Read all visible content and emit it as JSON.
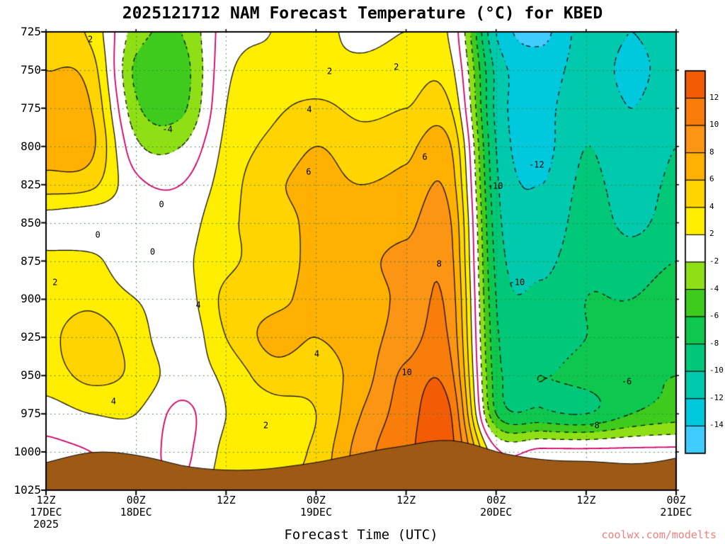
{
  "title": "2025121712 NAM Forecast Temperature (°C) for KBED",
  "xlabel": "Forecast Time (UTC)",
  "watermark": "coolwx.com/modelts",
  "axes": {
    "y_tick_labels": [
      "725",
      "750",
      "775",
      "800",
      "825",
      "850",
      "875",
      "900",
      "925",
      "950",
      "975",
      "1000",
      "1025"
    ],
    "x_tick_labels": [
      "12Z",
      "00Z",
      "12Z",
      "00Z",
      "12Z",
      "00Z",
      "12Z",
      "00Z"
    ],
    "date_labels": [
      {
        "text": "17DEC",
        "hour": 0,
        "row": 1
      },
      {
        "text": "2025",
        "hour": 0,
        "row": 2
      },
      {
        "text": "18DEC",
        "hour": 12,
        "row": 1
      },
      {
        "text": "19DEC",
        "hour": 36,
        "row": 1
      },
      {
        "text": "20DEC",
        "hour": 60,
        "row": 1
      },
      {
        "text": "21DEC",
        "hour": 84,
        "row": 1
      }
    ]
  },
  "colorbar": {
    "tick_labels": [
      "12",
      "10",
      "8",
      "6",
      "4",
      "2",
      "-2",
      "-4",
      "-6",
      "-8",
      "-10",
      "-12",
      "-14"
    ]
  },
  "colors": {
    "band_colors_cold_to_warm": [
      "#41ccff",
      "#00c9de",
      "#00c9ad",
      "#00c878",
      "#0ec74e",
      "#3ecb1e",
      "#8fdf16",
      "#ffffff",
      "#ffee00",
      "#ffd400",
      "#ffb000",
      "#fc9414",
      "#f87d0a",
      "#f25c05"
    ],
    "contour_positive": "#000000",
    "contour_negative": "#000000",
    "contour_zero": "#cc0066",
    "grid_dots": "#2e7d32",
    "terrain": "#9e5a15",
    "frame": "#000000",
    "watermark": "#f08080"
  },
  "contour_labels": [
    {
      "text": "2",
      "t": 5.9,
      "p": 730
    },
    {
      "text": "-4",
      "t": 16.2,
      "p": 789
    },
    {
      "text": "0",
      "t": 15.4,
      "p": 838
    },
    {
      "text": "0",
      "t": 6.9,
      "p": 858
    },
    {
      "text": "0",
      "t": 14.2,
      "p": 869
    },
    {
      "text": "2",
      "t": 1.2,
      "p": 889
    },
    {
      "text": "4",
      "t": 9.0,
      "p": 967
    },
    {
      "text": "4",
      "t": 20.3,
      "p": 904
    },
    {
      "text": "2",
      "t": 29.3,
      "p": 983
    },
    {
      "text": "4",
      "t": 36.1,
      "p": 936
    },
    {
      "text": "4",
      "t": 35.1,
      "p": 776
    },
    {
      "text": "2",
      "t": 37.8,
      "p": 751
    },
    {
      "text": "6",
      "t": 35.0,
      "p": 817
    },
    {
      "text": "2",
      "t": 46.7,
      "p": 748
    },
    {
      "text": "6",
      "t": 50.5,
      "p": 807
    },
    {
      "text": "8",
      "t": 52.4,
      "p": 877
    },
    {
      "text": "10",
      "t": 48.1,
      "p": 948
    },
    {
      "text": "-10",
      "t": 59.9,
      "p": 826
    },
    {
      "text": "-12",
      "t": 65.4,
      "p": 812
    },
    {
      "text": "-10",
      "t": 62.8,
      "p": 889
    },
    {
      "text": "-6",
      "t": 77.4,
      "p": 954
    },
    {
      "text": "-8",
      "t": 73.1,
      "p": 983
    }
  ],
  "chart_data": {
    "type": "heatmap",
    "title": "2025121712 NAM Forecast Temperature (°C) for KBED",
    "xlabel": "Forecast Time (UTC)",
    "units": "°C",
    "x_start": "12Z 17DEC 2025",
    "x_tick_hours": [
      0,
      12,
      24,
      36,
      48,
      60,
      72,
      84
    ],
    "x_tick_labels": [
      "12Z",
      "00Z",
      "12Z",
      "00Z",
      "12Z",
      "00Z",
      "12Z",
      "00Z"
    ],
    "x_hours_from_start": [
      0,
      6,
      12,
      18,
      24,
      30,
      36,
      42,
      48,
      54,
      60,
      66,
      72,
      78,
      84
    ],
    "pressure_levels": [
      725,
      750,
      775,
      800,
      825,
      850,
      875,
      900,
      925,
      950,
      975,
      1000,
      1025
    ],
    "band_boundaries": [
      -14,
      -12,
      -10,
      -8,
      -6,
      -4,
      -2,
      2,
      4,
      6,
      8,
      10,
      12
    ],
    "contour_levels": [
      -14,
      -12,
      -10,
      -8,
      -6,
      -4,
      -2,
      0,
      2,
      4,
      6,
      8,
      10,
      12
    ],
    "contour_interval": 2,
    "temperature_c_by_time": [
      [
        5,
        6,
        6.5,
        7,
        5,
        1,
        2.5,
        3,
        3.5,
        3,
        1,
        -0.5,
        -0.5
      ],
      [
        3.5,
        5,
        6,
        6.5,
        4.5,
        0.5,
        2.5,
        3.5,
        5,
        4.5,
        2,
        0,
        0
      ],
      [
        -3,
        -4.5,
        -3.5,
        -1.5,
        0.5,
        1,
        0.5,
        2,
        3,
        3.5,
        2,
        1,
        1
      ],
      [
        -4,
        -5,
        -4.5,
        -2,
        0,
        1,
        1.5,
        1,
        0.5,
        1,
        -0.5,
        -0.5,
        0
      ],
      [
        1,
        1.5,
        2,
        2.5,
        3,
        3.5,
        3.5,
        4.5,
        4,
        2.5,
        2,
        2.5,
        3
      ],
      [
        2,
        2.5,
        3.5,
        4.5,
        5.5,
        5,
        5,
        5.5,
        6.5,
        5,
        3,
        3,
        3.5
      ],
      [
        2.5,
        2.5,
        4.5,
        6,
        6.5,
        6.5,
        6.5,
        6.5,
        6,
        5,
        4,
        4.5,
        5
      ],
      [
        1.5,
        2.5,
        3.5,
        5,
        6,
        7,
        7.5,
        7,
        7,
        7,
        8,
        9,
        9
      ],
      [
        2,
        3,
        4,
        5.5,
        6.5,
        7.5,
        8.5,
        8.5,
        9,
        10.5,
        11,
        11.5,
        11
      ],
      [
        1.5,
        2.5,
        4,
        6,
        7,
        8,
        8.5,
        9,
        9.5,
        10.5,
        12,
        12.5,
        12
      ],
      [
        -12,
        -10.5,
        -10.5,
        -10,
        -9.5,
        -9,
        -8.5,
        -8,
        -7.5,
        -7,
        -6,
        0.5,
        1
      ],
      [
        -14.5,
        -13,
        -12.5,
        -12.5,
        -12,
        -11.5,
        -10.5,
        -9.5,
        -8.5,
        -8,
        -7.5,
        0.5,
        1
      ],
      [
        -11,
        -11,
        -10.5,
        -10,
        -9.5,
        -9,
        -8.5,
        -8,
        -8,
        -7.5,
        -8,
        0.5,
        1
      ],
      [
        -12,
        -12.5,
        -12,
        -11.5,
        -11,
        -10.5,
        -9,
        -8,
        -7,
        -6.5,
        -6,
        0.5,
        1
      ],
      [
        -11,
        -11,
        -10.5,
        -10,
        -9.5,
        -9,
        -8,
        -7,
        -6.5,
        -6,
        -5,
        0.5,
        1
      ]
    ],
    "terrain": {
      "hours": [
        0,
        3,
        6,
        9,
        12,
        15,
        18,
        21,
        24,
        27,
        30,
        33,
        36,
        39,
        42,
        45,
        48,
        51,
        54,
        57,
        60,
        63,
        66,
        69,
        72,
        75,
        78,
        81,
        84
      ],
      "pressure_hpa": [
        1007,
        1003,
        1000,
        1000,
        1002,
        1005,
        1009,
        1011,
        1012,
        1012,
        1011,
        1009,
        1007,
        1004,
        1001,
        998,
        996,
        993,
        992,
        995,
        1000,
        1003,
        1005,
        1006,
        1006,
        1007,
        1008,
        1007,
        1004
      ]
    }
  }
}
